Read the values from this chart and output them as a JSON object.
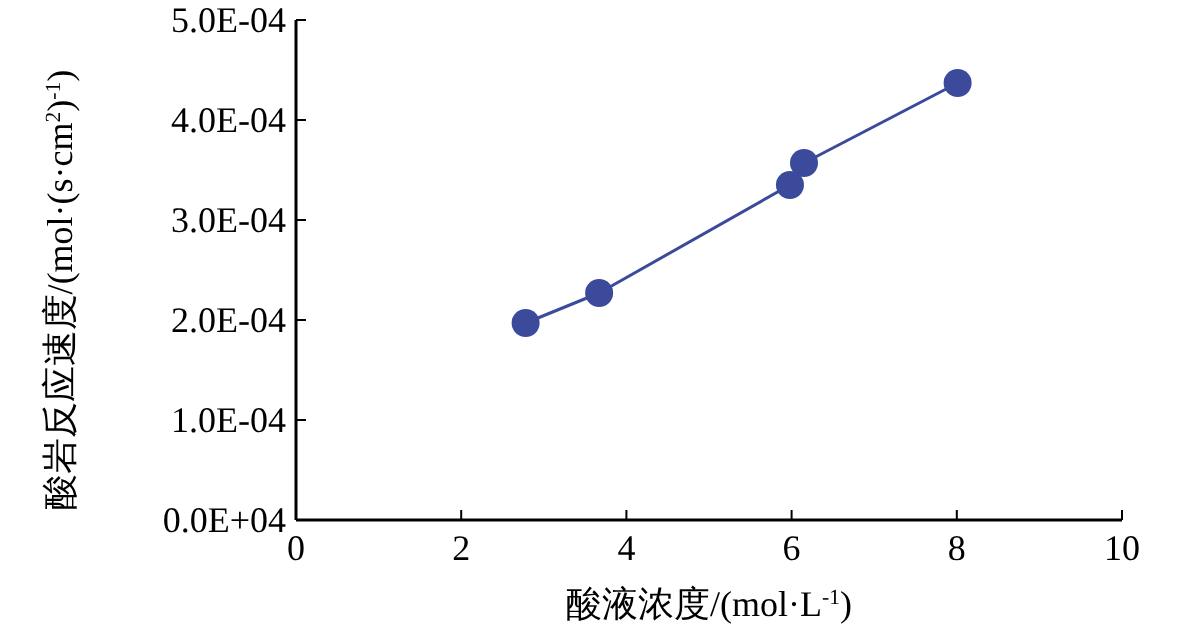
{
  "chart_data": {
    "type": "line",
    "xlabel": "酸液浓度/(mol·L$^{-1}$)",
    "ylabel": "酸岩反应速度/(mol·(s·cm$^{2}$)$^{-1}$)",
    "x": [
      2.78,
      3.67,
      5.98,
      6.15,
      8.01
    ],
    "series": [
      {
        "color": "#3b4a9a",
        "values": [
          0.000197,
          0.000227,
          0.000335,
          0.000357,
          0.000437
        ]
      }
    ],
    "marker": "circle",
    "line_style": "solid",
    "grid": false,
    "xlim": [
      0,
      10
    ],
    "xticks": [
      0,
      2,
      4,
      6,
      8,
      10
    ],
    "ylim": [
      0,
      0.0005
    ],
    "yticks": [
      {
        "value": 0,
        "label": "0.0E+04"
      },
      {
        "value": 0.0001,
        "label": "1.0E-04"
      },
      {
        "value": 0.0002,
        "label": "2.0E-04"
      },
      {
        "value": 0.0003,
        "label": "3.0E-04"
      },
      {
        "value": 0.0004,
        "label": "4.0E-04"
      },
      {
        "value": 0.0005,
        "label": "5.0E-04"
      }
    ]
  }
}
